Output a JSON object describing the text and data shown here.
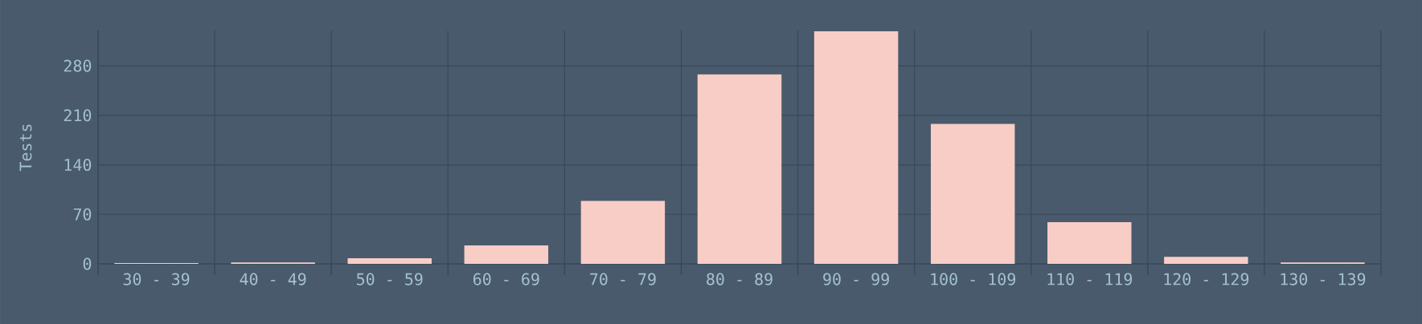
{
  "chart_data": {
    "type": "bar",
    "ylabel": "Tests",
    "categories": [
      "30 - 39",
      "40 - 49",
      "50 - 59",
      "60 - 69",
      "70 - 79",
      "80 - 89",
      "90 - 99",
      "100 - 109",
      "110 - 119",
      "120 - 129",
      "130 - 139"
    ],
    "values": [
      1,
      2,
      8,
      26,
      89,
      268,
      329,
      198,
      59,
      10,
      2
    ],
    "color": "#f8cdc6",
    "ylim": [
      0,
      330
    ],
    "yticks": [
      0,
      70,
      140,
      210,
      280
    ],
    "grid": true
  }
}
